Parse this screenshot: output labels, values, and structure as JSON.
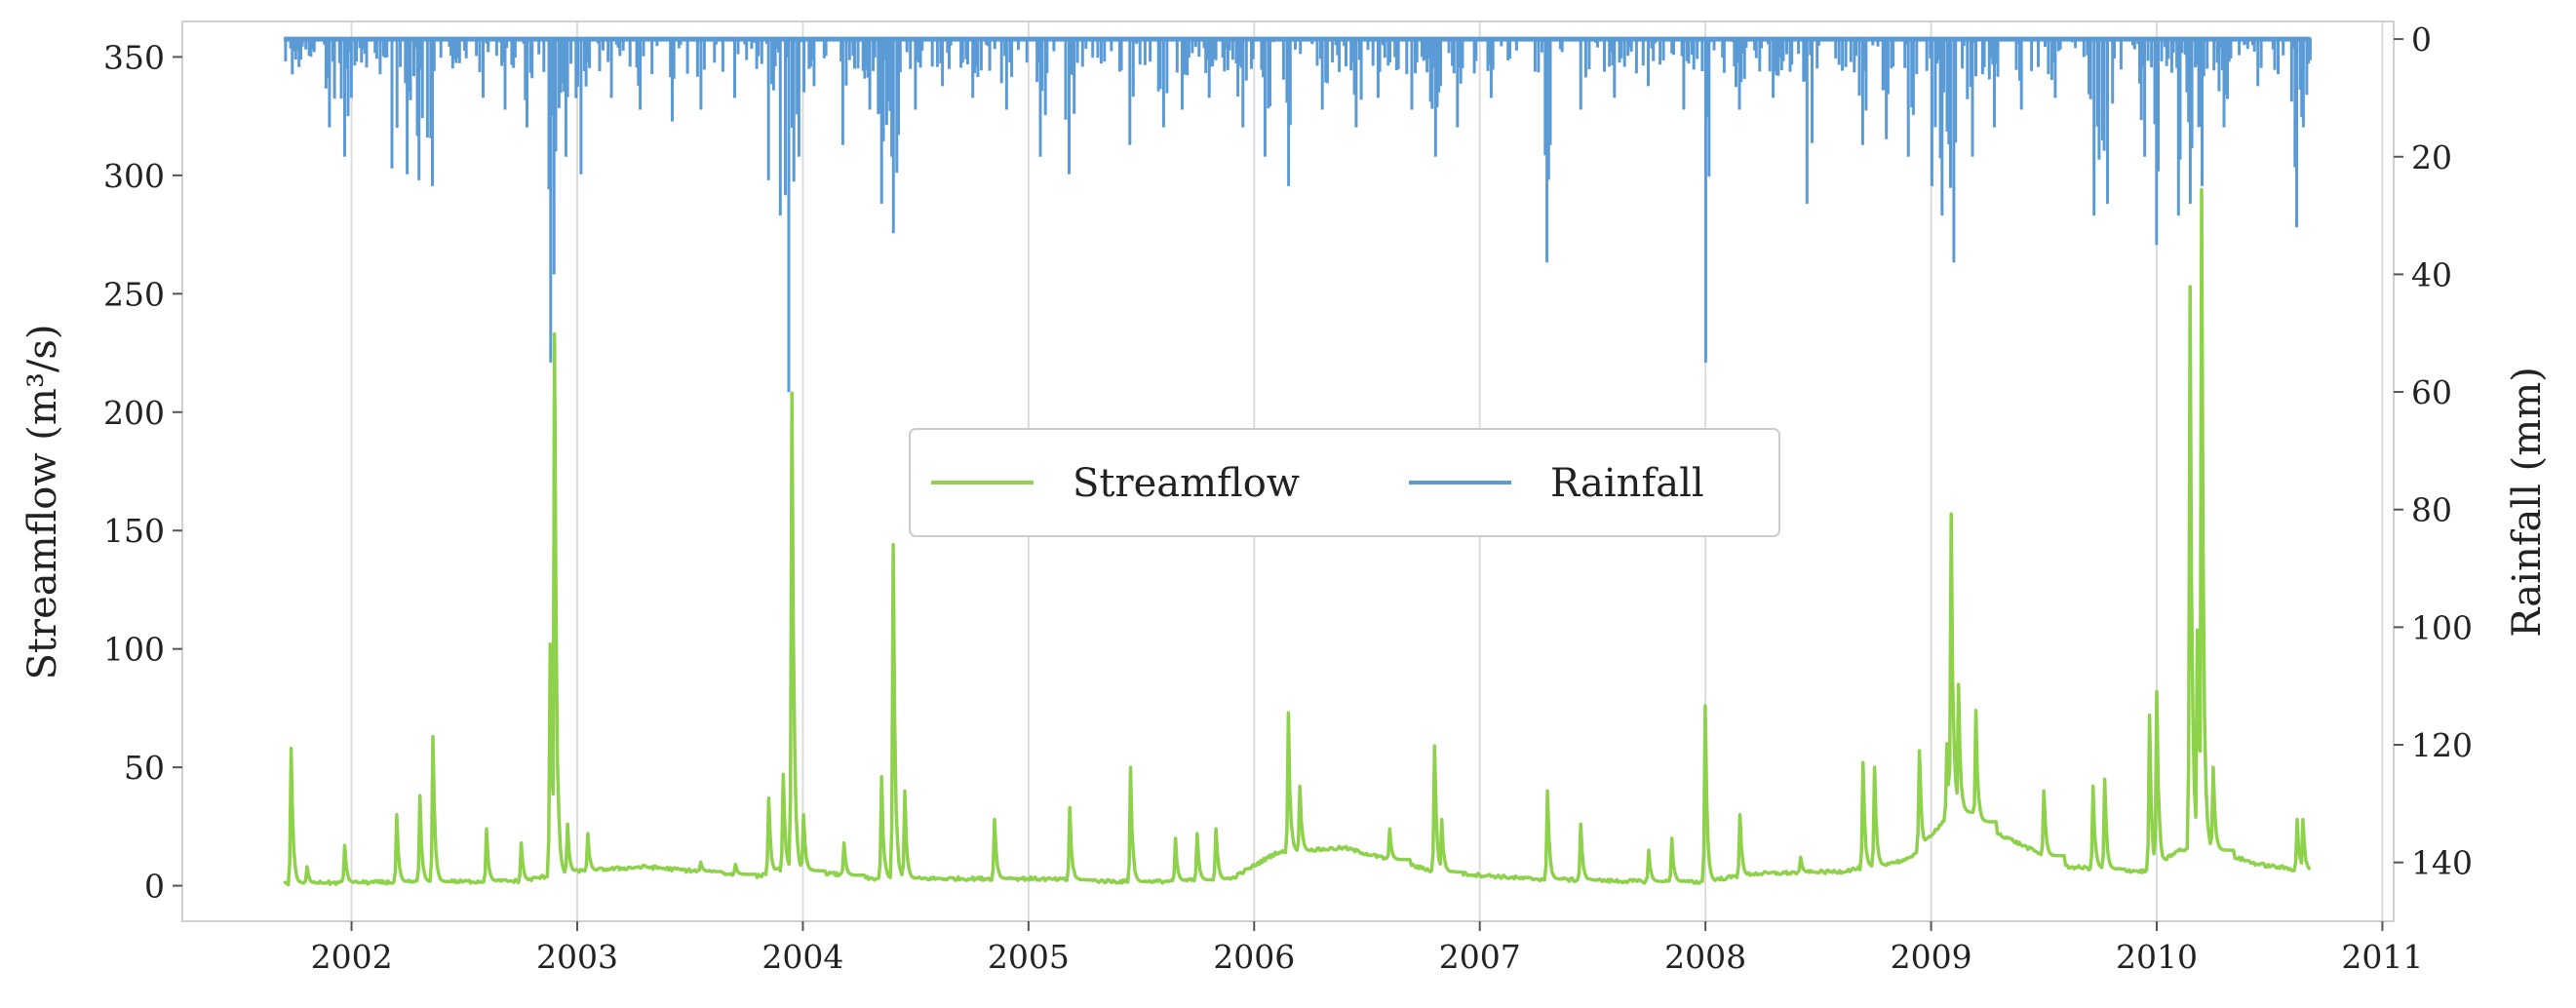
{
  "chart_data": {
    "type": "line",
    "title": "",
    "xlabel": "",
    "ylabel": "Streamflow (m³/s)",
    "y2label": "Rainfall (mm)",
    "xlim": [
      2001.25,
      2011.05
    ],
    "xticks": [
      2002,
      2003,
      2004,
      2005,
      2006,
      2007,
      2008,
      2009,
      2010,
      2011
    ],
    "ylim": [
      -15,
      365
    ],
    "yticks": [
      0,
      50,
      100,
      150,
      200,
      250,
      300,
      350
    ],
    "y2lim": [
      150,
      -3
    ],
    "y2ticks": [
      0,
      20,
      40,
      60,
      80,
      100,
      120,
      140
    ],
    "grid": "vertical",
    "legend": {
      "placement": "center",
      "entries": [
        "Streamflow",
        "Rainfall"
      ]
    },
    "series": [
      {
        "name": "Streamflow",
        "axis": "left",
        "color": "#8ed14b",
        "baseflow": [
          [
            2001.7,
            1
          ],
          [
            2002.2,
            1.5
          ],
          [
            2002.75,
            2
          ],
          [
            2002.98,
            6
          ],
          [
            2003.3,
            8
          ],
          [
            2003.8,
            4
          ],
          [
            2003.9,
            7
          ],
          [
            2004.05,
            6
          ],
          [
            2004.3,
            3
          ],
          [
            2004.7,
            3
          ],
          [
            2005.0,
            3
          ],
          [
            2005.5,
            1.5
          ],
          [
            2005.9,
            3
          ],
          [
            2006.1,
            14
          ],
          [
            2006.4,
            16
          ],
          [
            2006.8,
            6
          ],
          [
            2007.2,
            3
          ],
          [
            2007.6,
            2
          ],
          [
            2007.98,
            1.5
          ],
          [
            2008.2,
            5
          ],
          [
            2008.6,
            6
          ],
          [
            2008.9,
            11
          ],
          [
            2009.1,
            32
          ],
          [
            2009.3,
            22
          ],
          [
            2009.6,
            8
          ],
          [
            2009.95,
            6
          ],
          [
            2010.1,
            15
          ],
          [
            2010.25,
            15
          ],
          [
            2010.45,
            9
          ],
          [
            2010.68,
            6
          ]
        ],
        "peaks": [
          [
            2001.73,
            58
          ],
          [
            2001.8,
            8
          ],
          [
            2001.97,
            17
          ],
          [
            2002.2,
            30
          ],
          [
            2002.3,
            38
          ],
          [
            2002.36,
            63
          ],
          [
            2002.6,
            24
          ],
          [
            2002.75,
            18
          ],
          [
            2002.88,
            102
          ],
          [
            2002.9,
            233
          ],
          [
            2002.96,
            26
          ],
          [
            2003.05,
            22
          ],
          [
            2003.55,
            10
          ],
          [
            2003.7,
            9
          ],
          [
            2003.85,
            37
          ],
          [
            2003.91,
            47
          ],
          [
            2003.95,
            208
          ],
          [
            2004.0,
            30
          ],
          [
            2004.18,
            18
          ],
          [
            2004.35,
            46
          ],
          [
            2004.4,
            144
          ],
          [
            2004.45,
            40
          ],
          [
            2004.85,
            28
          ],
          [
            2005.18,
            33
          ],
          [
            2005.45,
            50
          ],
          [
            2005.65,
            20
          ],
          [
            2005.75,
            22
          ],
          [
            2005.83,
            24
          ],
          [
            2006.15,
            73
          ],
          [
            2006.2,
            42
          ],
          [
            2006.6,
            24
          ],
          [
            2006.8,
            59
          ],
          [
            2006.83,
            28
          ],
          [
            2007.3,
            40
          ],
          [
            2007.45,
            26
          ],
          [
            2007.75,
            15
          ],
          [
            2007.85,
            20
          ],
          [
            2008.0,
            76
          ],
          [
            2008.15,
            30
          ],
          [
            2008.42,
            12
          ],
          [
            2008.7,
            52
          ],
          [
            2008.75,
            50
          ],
          [
            2008.95,
            57
          ],
          [
            2009.07,
            60
          ],
          [
            2009.09,
            157
          ],
          [
            2009.12,
            85
          ],
          [
            2009.2,
            74
          ],
          [
            2009.5,
            40
          ],
          [
            2009.72,
            42
          ],
          [
            2009.77,
            45
          ],
          [
            2009.97,
            72
          ],
          [
            2010.0,
            82
          ],
          [
            2010.15,
            253
          ],
          [
            2010.18,
            108
          ],
          [
            2010.2,
            294
          ],
          [
            2010.25,
            50
          ],
          [
            2010.62,
            28
          ],
          [
            2010.65,
            28
          ]
        ]
      },
      {
        "name": "Rainfall",
        "axis": "right",
        "color": "#5b9bd5",
        "events": [
          [
            2001.74,
            6
          ],
          [
            2001.82,
            3
          ],
          [
            2001.9,
            15
          ],
          [
            2001.97,
            20
          ],
          [
            2002.0,
            10
          ],
          [
            2002.13,
            6
          ],
          [
            2002.18,
            22
          ],
          [
            2002.25,
            23
          ],
          [
            2002.3,
            24
          ],
          [
            2002.36,
            25
          ],
          [
            2002.45,
            5
          ],
          [
            2002.58,
            10
          ],
          [
            2002.68,
            12
          ],
          [
            2002.78,
            15
          ],
          [
            2002.88,
            55
          ],
          [
            2002.9,
            40
          ],
          [
            2002.95,
            20
          ],
          [
            2003.02,
            23
          ],
          [
            2003.15,
            10
          ],
          [
            2003.28,
            12
          ],
          [
            2003.42,
            14
          ],
          [
            2003.55,
            12
          ],
          [
            2003.7,
            10
          ],
          [
            2003.85,
            24
          ],
          [
            2003.9,
            30
          ],
          [
            2003.94,
            60
          ],
          [
            2003.98,
            20
          ],
          [
            2004.05,
            8
          ],
          [
            2004.18,
            18
          ],
          [
            2004.3,
            12
          ],
          [
            2004.35,
            28
          ],
          [
            2004.4,
            33
          ],
          [
            2004.5,
            12
          ],
          [
            2004.62,
            8
          ],
          [
            2004.75,
            10
          ],
          [
            2004.9,
            12
          ],
          [
            2005.05,
            20
          ],
          [
            2005.18,
            23
          ],
          [
            2005.45,
            18
          ],
          [
            2005.6,
            15
          ],
          [
            2005.68,
            12
          ],
          [
            2005.8,
            10
          ],
          [
            2005.95,
            15
          ],
          [
            2006.05,
            20
          ],
          [
            2006.15,
            25
          ],
          [
            2006.3,
            12
          ],
          [
            2006.45,
            15
          ],
          [
            2006.55,
            10
          ],
          [
            2006.7,
            12
          ],
          [
            2006.8,
            20
          ],
          [
            2006.9,
            15
          ],
          [
            2007.05,
            10
          ],
          [
            2007.3,
            38
          ],
          [
            2007.45,
            12
          ],
          [
            2007.6,
            10
          ],
          [
            2007.75,
            8
          ],
          [
            2007.9,
            12
          ],
          [
            2008.0,
            55
          ],
          [
            2008.15,
            12
          ],
          [
            2008.3,
            10
          ],
          [
            2008.45,
            28
          ],
          [
            2008.7,
            18
          ],
          [
            2008.8,
            17
          ],
          [
            2008.9,
            20
          ],
          [
            2009.0,
            25
          ],
          [
            2009.05,
            30
          ],
          [
            2009.1,
            38
          ],
          [
            2009.18,
            20
          ],
          [
            2009.28,
            15
          ],
          [
            2009.4,
            12
          ],
          [
            2009.55,
            10
          ],
          [
            2009.72,
            30
          ],
          [
            2009.78,
            28
          ],
          [
            2009.95,
            20
          ],
          [
            2010.0,
            35
          ],
          [
            2010.1,
            30
          ],
          [
            2010.15,
            28
          ],
          [
            2010.2,
            25
          ],
          [
            2010.3,
            15
          ],
          [
            2010.45,
            8
          ],
          [
            2010.62,
            32
          ],
          [
            2010.65,
            15
          ]
        ]
      }
    ]
  }
}
